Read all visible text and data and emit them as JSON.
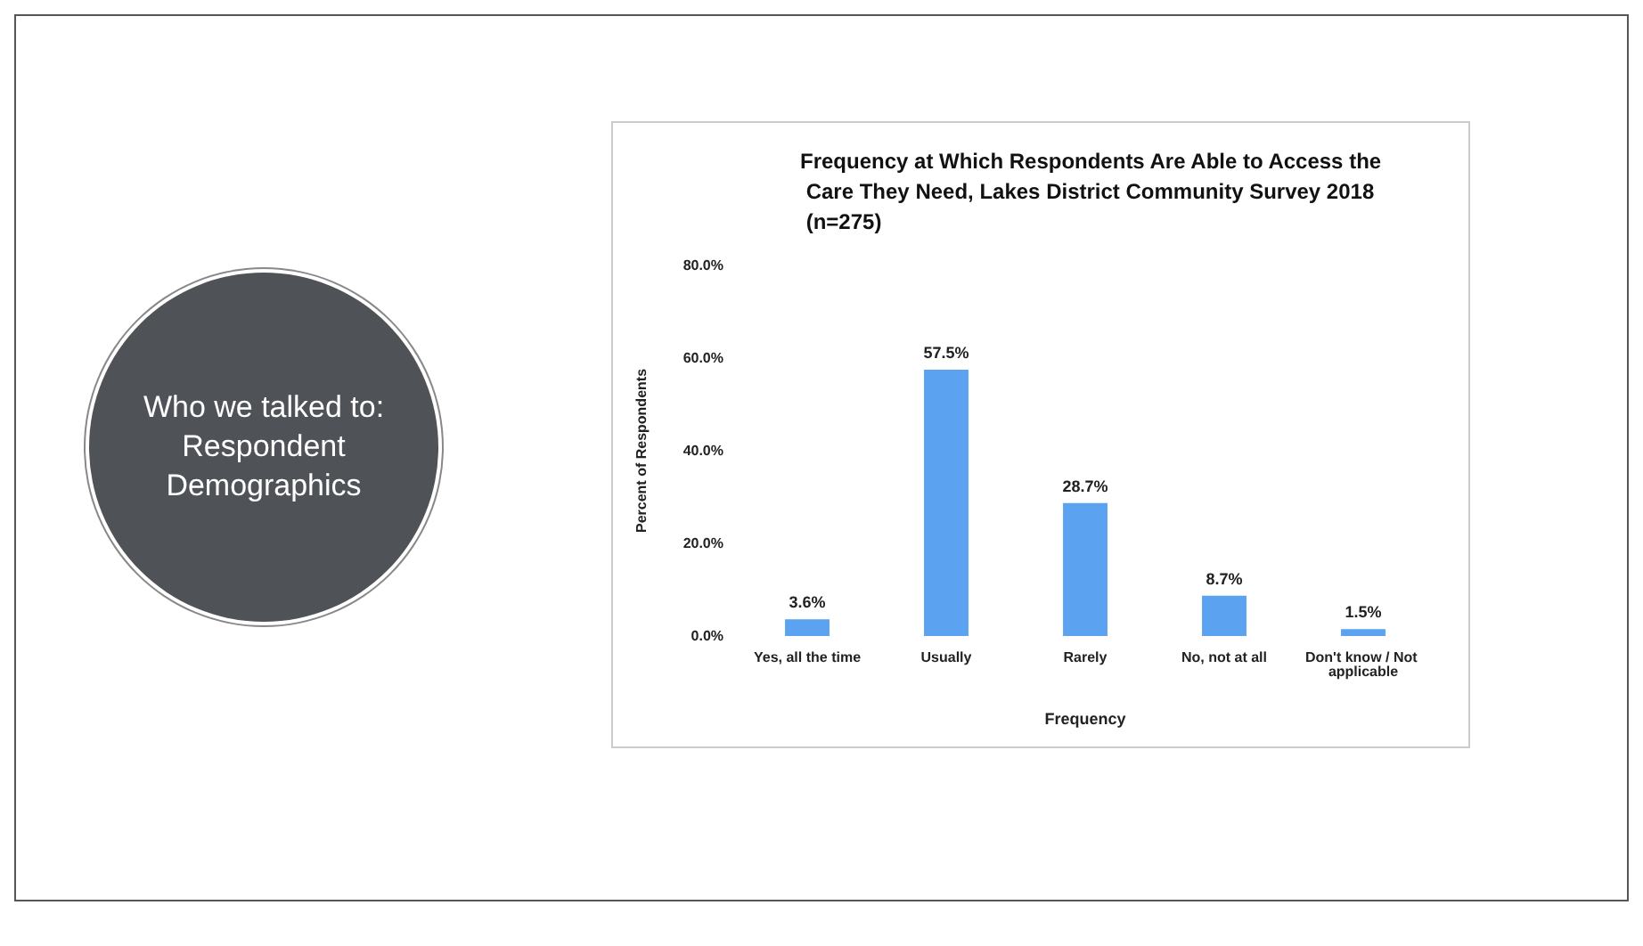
{
  "chart_data": {
    "type": "bar",
    "title": "Frequency at Which Respondents Are Able to Access the Care They Need, Lakes District Community Survey 2018 (n=275)",
    "annotations": [
      "Who we talked to: Respondent Demographics"
    ],
    "xlabel": "Frequency",
    "ylabel": "Percent of Respondents",
    "categories": [
      "Yes, all the time",
      "Usually",
      "Rarely",
      "No, not at all",
      "Don't know / Not applicable"
    ],
    "values": [
      3.6,
      57.5,
      28.7,
      8.7,
      1.5
    ],
    "value_labels": [
      "3.6%",
      "57.5%",
      "28.7%",
      "8.7%",
      "1.5%"
    ],
    "color": "#5ba3f0",
    "ylim": [
      0,
      80
    ],
    "yticks": [
      {
        "value": 0,
        "label": "0.0%"
      },
      {
        "value": 20,
        "label": "20.0%"
      },
      {
        "value": 40,
        "label": "40.0%"
      },
      {
        "value": 60,
        "label": "60.0%"
      },
      {
        "value": 80,
        "label": "80.0%"
      }
    ],
    "grid": false
  }
}
